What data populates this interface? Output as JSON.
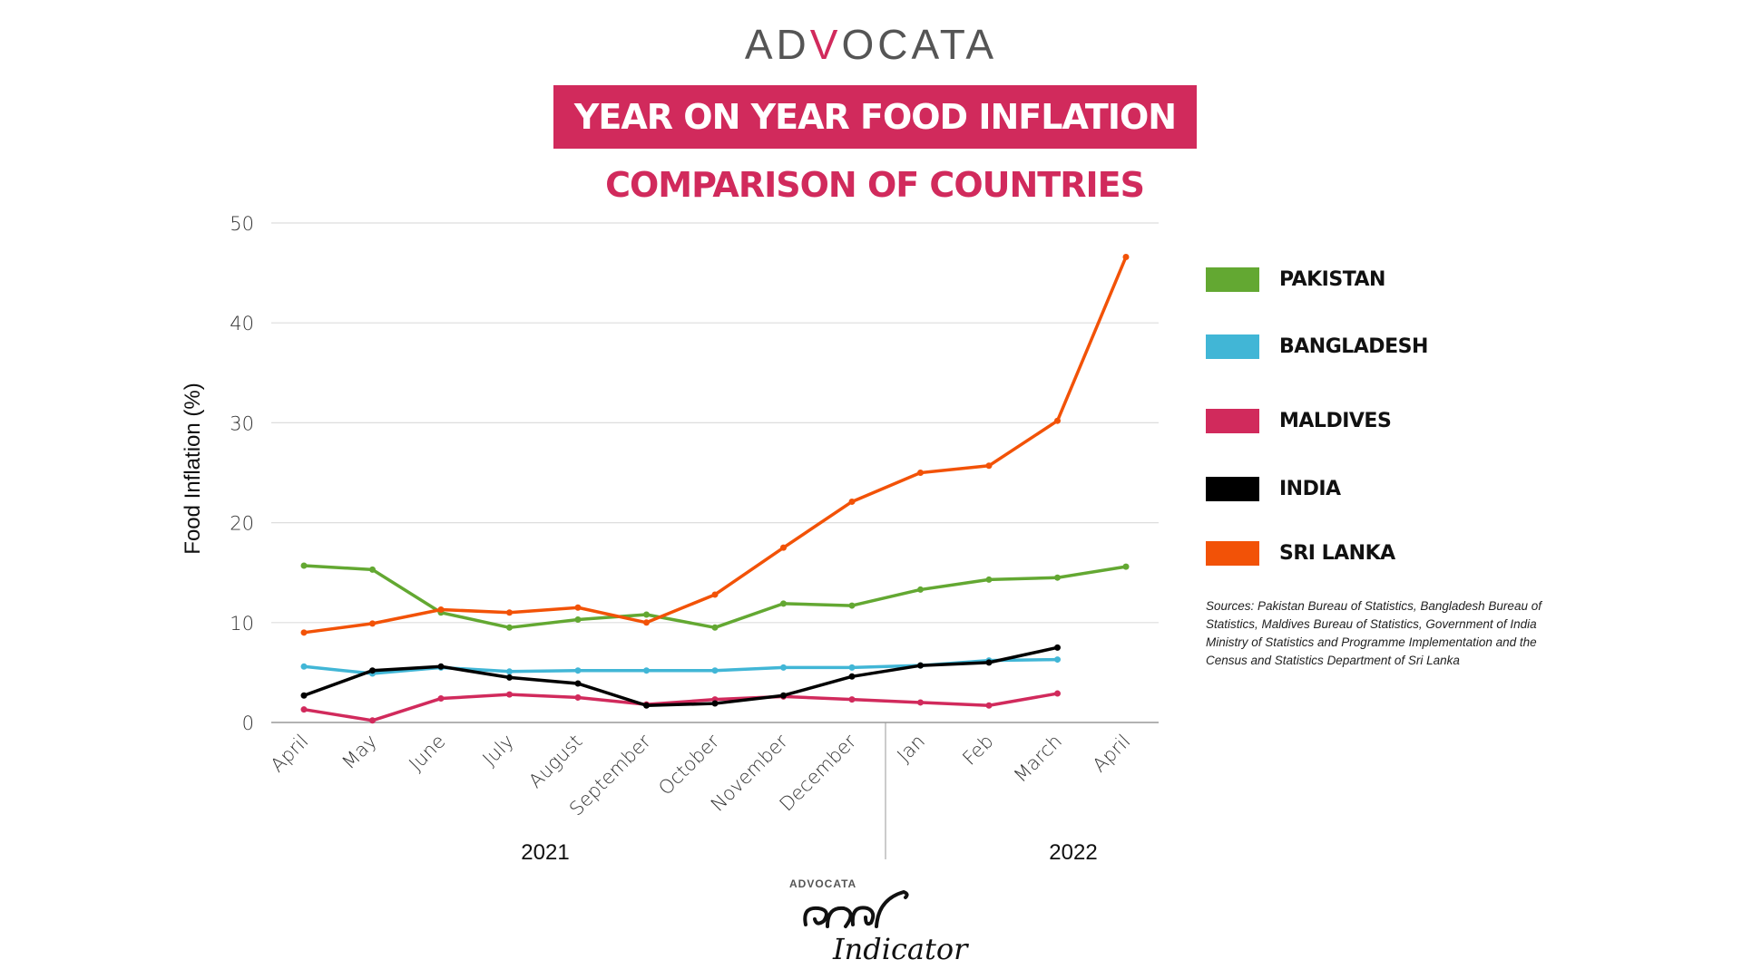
{
  "header": {
    "logo_text": "ADVOCATA",
    "title": "YEAR ON YEAR FOOD INFLATION",
    "subtitle": "COMPARISON OF COUNTRIES"
  },
  "colors": {
    "accent": "#d12a5c"
  },
  "chart_data": {
    "type": "line",
    "ylabel": "Food Inflation (%)",
    "ylim": [
      0,
      50
    ],
    "yticks": [
      "0",
      "10",
      "20",
      "30",
      "40",
      "50"
    ],
    "grid": true,
    "legend_position": "right",
    "categories": [
      "April",
      "May",
      "June",
      "July",
      "August",
      "September",
      "October",
      "November",
      "December",
      "Jan",
      "Feb",
      "March",
      "April"
    ],
    "year_groups": [
      {
        "label": "2021"
      },
      {
        "label": "2022"
      }
    ],
    "series": [
      {
        "name": "PAKISTAN",
        "color": "#63a832",
        "values": [
          15.7,
          15.3,
          11.0,
          9.5,
          10.3,
          10.8,
          9.5,
          11.9,
          11.7,
          13.3,
          14.3,
          14.5,
          15.6
        ]
      },
      {
        "name": "BANGLADESH",
        "color": "#41b6d6",
        "values": [
          5.6,
          4.9,
          5.5,
          5.1,
          5.2,
          5.2,
          5.2,
          5.5,
          5.5,
          5.7,
          6.2,
          6.3,
          null
        ]
      },
      {
        "name": "MALDIVES",
        "color": "#d12a5c",
        "values": [
          1.3,
          0.2,
          2.4,
          2.8,
          2.5,
          1.8,
          2.3,
          2.6,
          2.3,
          2.0,
          1.7,
          2.9,
          null
        ]
      },
      {
        "name": "INDIA",
        "color": "#000000",
        "values": [
          2.7,
          5.2,
          5.6,
          4.5,
          3.9,
          1.7,
          1.9,
          2.7,
          4.6,
          5.7,
          6.0,
          7.5,
          null
        ]
      },
      {
        "name": "SRI LANKA",
        "color": "#f25207",
        "values": [
          9.0,
          9.9,
          11.3,
          11.0,
          11.5,
          10.0,
          12.8,
          17.5,
          22.1,
          25.0,
          25.7,
          30.2,
          46.6
        ]
      }
    ]
  },
  "sources": "Sources: Pakistan Bureau of Statistics, Bangladesh Bureau of Statistics, Maldives Bureau of Statistics, Government of India Ministry of Statistics and Programme Implementation and the Census and Statistics Department of Sri Lanka",
  "footer_logo": {
    "brand": "ADVOCATA",
    "name": "Indicator"
  }
}
